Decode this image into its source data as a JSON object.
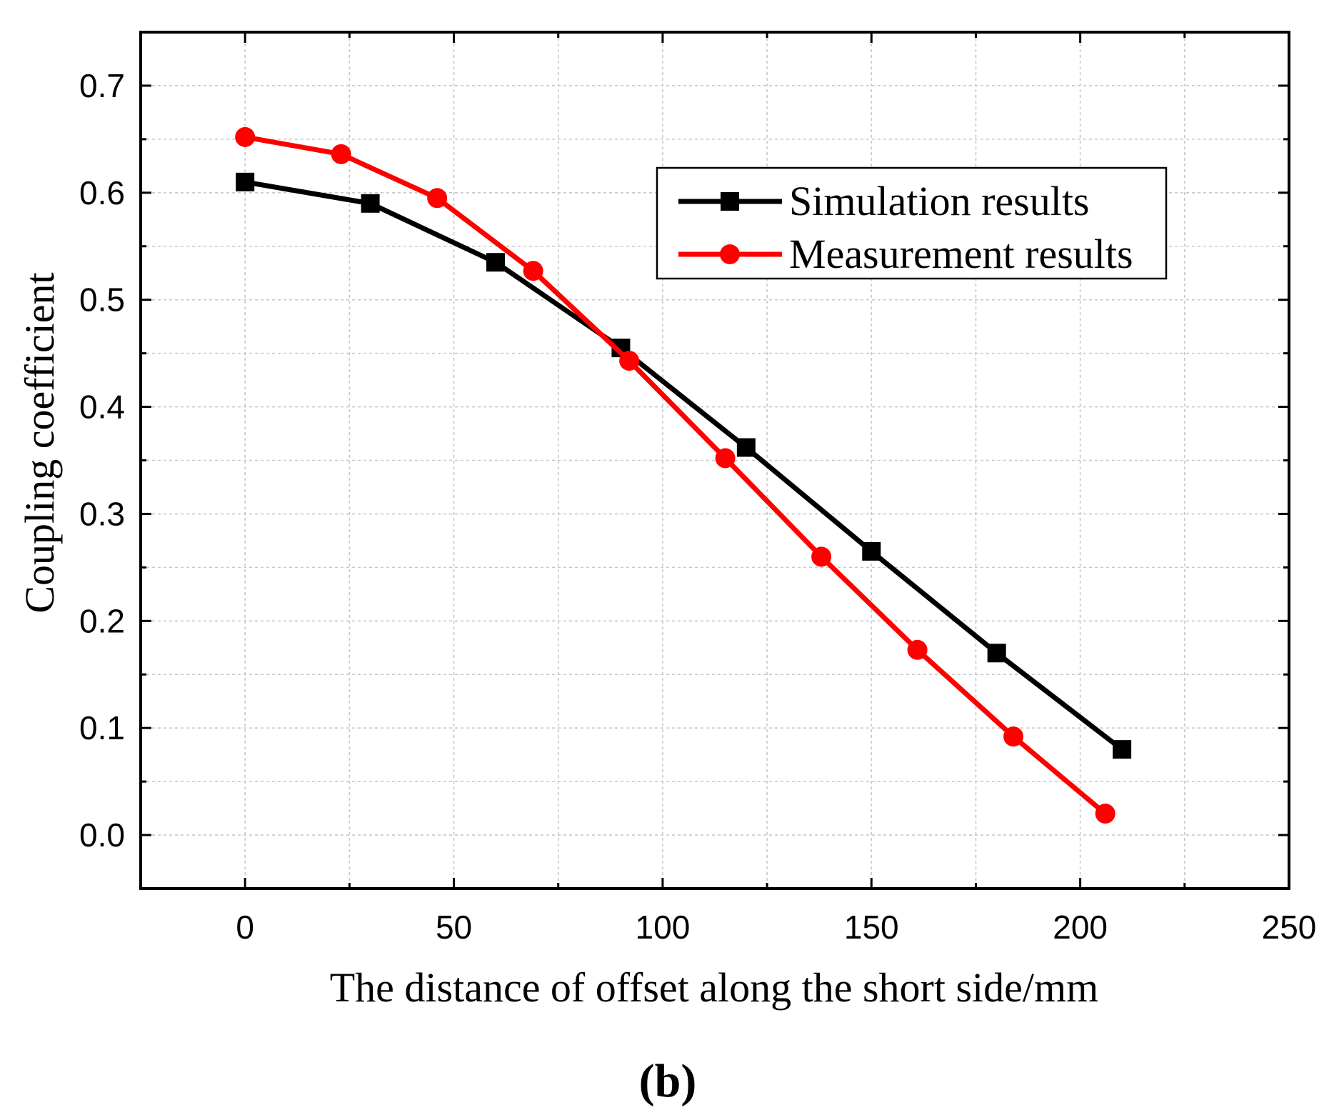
{
  "chart_data": {
    "type": "line",
    "xlabel": "The distance of offset along the short side/mm",
    "ylabel": "Coupling coefficient",
    "xlim": [
      -25,
      250
    ],
    "ylim": [
      -0.05,
      0.75
    ],
    "xticks": [
      0,
      50,
      100,
      150,
      200,
      250
    ],
    "yticks": [
      0.0,
      0.1,
      0.2,
      0.3,
      0.4,
      0.5,
      0.6,
      0.7
    ],
    "xtick_labels": [
      "0",
      "50",
      "100",
      "150",
      "200",
      "250"
    ],
    "ytick_labels": [
      "0.0",
      "0.1",
      "0.2",
      "0.3",
      "0.4",
      "0.5",
      "0.6",
      "0.7"
    ],
    "grid": true,
    "legend_position": "top-right",
    "panel_label": "(b)",
    "series": [
      {
        "name": "Simulation results",
        "color": "#000000",
        "marker": "square",
        "x": [
          0,
          30,
          60,
          90,
          120,
          150,
          180,
          210
        ],
        "y": [
          0.61,
          0.59,
          0.535,
          0.455,
          0.362,
          0.265,
          0.17,
          0.08
        ]
      },
      {
        "name": "Measurement results",
        "color": "#ff0000",
        "marker": "circle",
        "x": [
          0,
          23,
          46,
          69,
          92,
          115,
          138,
          161,
          184,
          206
        ],
        "y": [
          0.652,
          0.636,
          0.595,
          0.527,
          0.443,
          0.352,
          0.26,
          0.173,
          0.092,
          0.02
        ]
      }
    ]
  }
}
